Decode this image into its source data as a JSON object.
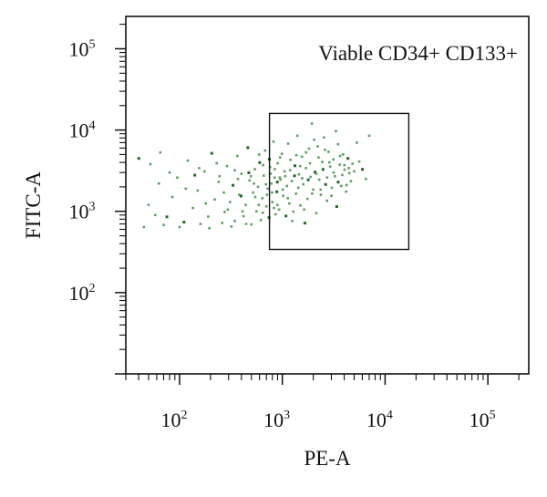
{
  "chart_data": {
    "type": "scatter",
    "title": "",
    "annotation": "Viable CD34+ CD133+",
    "xlabel": "PE-A",
    "ylabel": "FITC-A",
    "x_scale": "log",
    "y_scale": "log",
    "xlim": [
      30,
      250000
    ],
    "ylim": [
      10,
      250000
    ],
    "x_ticks": [
      {
        "base": "10",
        "exp": "2",
        "value": 100
      },
      {
        "base": "10",
        "exp": "3",
        "value": 1000
      },
      {
        "base": "10",
        "exp": "4",
        "value": 10000
      },
      {
        "base": "10",
        "exp": "5",
        "value": 100000
      }
    ],
    "y_ticks": [
      {
        "base": "10",
        "exp": "2",
        "value": 100
      },
      {
        "base": "10",
        "exp": "3",
        "value": 1000
      },
      {
        "base": "10",
        "exp": "4",
        "value": 10000
      },
      {
        "base": "10",
        "exp": "5",
        "value": 100000
      }
    ],
    "gate": {
      "x": [
        750,
        17000
      ],
      "y": [
        340,
        16000
      ]
    },
    "point_color": "#2e7d32",
    "point_color_dense": "#1b5e20",
    "grid": false,
    "points": [
      [
        40,
        4500
      ],
      [
        52,
        3800
      ],
      [
        63,
        2200
      ],
      [
        58,
        900
      ],
      [
        70,
        680
      ],
      [
        85,
        1500
      ],
      [
        95,
        2600
      ],
      [
        110,
        740
      ],
      [
        120,
        4200
      ],
      [
        135,
        1100
      ],
      [
        150,
        1800
      ],
      [
        160,
        700
      ],
      [
        175,
        3100
      ],
      [
        190,
        860
      ],
      [
        205,
        5200
      ],
      [
        220,
        1400
      ],
      [
        240,
        2300
      ],
      [
        260,
        720
      ],
      [
        275,
        980
      ],
      [
        290,
        3600
      ],
      [
        310,
        1300
      ],
      [
        330,
        2100
      ],
      [
        345,
        760
      ],
      [
        365,
        4800
      ],
      [
        380,
        1600
      ],
      [
        400,
        2900
      ],
      [
        420,
        870
      ],
      [
        440,
        1200
      ],
      [
        460,
        6100
      ],
      [
        480,
        2400
      ],
      [
        500,
        690
      ],
      [
        520,
        1700
      ],
      [
        540,
        3300
      ],
      [
        560,
        1000
      ],
      [
        580,
        2000
      ],
      [
        600,
        4000
      ],
      [
        620,
        780
      ],
      [
        640,
        1450
      ],
      [
        660,
        2750
      ],
      [
        680,
        5600
      ],
      [
        700,
        1150
      ],
      [
        720,
        1900
      ],
      [
        740,
        840
      ],
      [
        760,
        3500
      ],
      [
        780,
        2200
      ],
      [
        800,
        1300
      ],
      [
        820,
        7200
      ],
      [
        840,
        2600
      ],
      [
        860,
        920
      ],
      [
        880,
        1750
      ],
      [
        900,
        3900
      ],
      [
        930,
        1050
      ],
      [
        960,
        2450
      ],
      [
        990,
        5100
      ],
      [
        1020,
        1550
      ],
      [
        1050,
        3100
      ],
      [
        1080,
        880
      ],
      [
        1110,
        2050
      ],
      [
        1140,
        6800
      ],
      [
        1170,
        1250
      ],
      [
        1200,
        4300
      ],
      [
        1240,
        2350
      ],
      [
        1280,
        990
      ],
      [
        1320,
        3650
      ],
      [
        1360,
        1650
      ],
      [
        1400,
        8500
      ],
      [
        1450,
        2850
      ],
      [
        1500,
        1180
      ],
      [
        1550,
        4700
      ],
      [
        1600,
        2150
      ],
      [
        1650,
        720
      ],
      [
        1700,
        3400
      ],
      [
        1760,
        1420
      ],
      [
        1820,
        5900
      ],
      [
        1880,
        2650
      ],
      [
        1940,
        12000
      ],
      [
        2000,
        1850
      ],
      [
        2070,
        3050
      ],
      [
        2140,
        950
      ],
      [
        2210,
        6300
      ],
      [
        2290,
        2450
      ],
      [
        2370,
        1600
      ],
      [
        2450,
        4050
      ],
      [
        2540,
        8100
      ],
      [
        2630,
        2150
      ],
      [
        2720,
        1350
      ],
      [
        2820,
        5400
      ],
      [
        2920,
        3550
      ],
      [
        3030,
        1950
      ],
      [
        3140,
        4350
      ],
      [
        3250,
        2700
      ],
      [
        3370,
        1150
      ],
      [
        3490,
        6700
      ],
      [
        3620,
        3750
      ],
      [
        3750,
        2050
      ],
      [
        3890,
        5000
      ],
      [
        4030,
        3250
      ],
      [
        4180,
        1750
      ],
      [
        4330,
        4500
      ],
      [
        4490,
        2950
      ],
      [
        4650,
        2350
      ],
      [
        4820,
        3850
      ],
      [
        5000,
        3100
      ],
      [
        5300,
        7000
      ],
      [
        5600,
        4100
      ],
      [
        6000,
        3300
      ],
      [
        6500,
        2500
      ],
      [
        7000,
        8500
      ],
      [
        50,
        1200
      ],
      [
        65,
        5300
      ],
      [
        80,
        3000
      ],
      [
        100,
        640
      ],
      [
        140,
        2800
      ],
      [
        180,
        1250
      ],
      [
        230,
        3900
      ],
      [
        270,
        1700
      ],
      [
        320,
        650
      ],
      [
        370,
        2500
      ],
      [
        410,
        1000
      ],
      [
        470,
        3000
      ],
      [
        530,
        2200
      ],
      [
        590,
        1200
      ],
      [
        650,
        3700
      ],
      [
        710,
        1600
      ],
      [
        770,
        2900
      ],
      [
        830,
        1100
      ],
      [
        890,
        2300
      ],
      [
        950,
        4600
      ],
      [
        1010,
        1850
      ],
      [
        1070,
        2700
      ],
      [
        1130,
        1450
      ],
      [
        1190,
        3200
      ],
      [
        1250,
        760
      ],
      [
        1310,
        2750
      ],
      [
        1370,
        4900
      ],
      [
        1430,
        1950
      ],
      [
        1490,
        3600
      ],
      [
        1560,
        2550
      ],
      [
        1630,
        1050
      ],
      [
        1700,
        5300
      ],
      [
        1780,
        2450
      ],
      [
        1860,
        3900
      ],
      [
        1950,
        1650
      ],
      [
        2040,
        7600
      ],
      [
        2140,
        2900
      ],
      [
        2250,
        4600
      ],
      [
        2360,
        1850
      ],
      [
        2480,
        3300
      ],
      [
        2600,
        5700
      ],
      [
        2730,
        2600
      ],
      [
        2870,
        4000
      ],
      [
        3010,
        1550
      ],
      [
        3160,
        3000
      ],
      [
        3320,
        9700
      ],
      [
        3480,
        2300
      ],
      [
        3650,
        4800
      ],
      [
        3830,
        2800
      ],
      [
        4020,
        3700
      ],
      [
        4220,
        2100
      ],
      [
        4430,
        3400
      ],
      [
        45,
        640
      ],
      [
        75,
        860
      ],
      [
        115,
        1900
      ],
      [
        155,
        3400
      ],
      [
        195,
        620
      ],
      [
        245,
        2700
      ],
      [
        295,
        1050
      ],
      [
        345,
        3200
      ],
      [
        395,
        1550
      ],
      [
        445,
        700
      ],
      [
        495,
        2700
      ],
      [
        545,
        1500
      ],
      [
        595,
        5000
      ],
      [
        645,
        960
      ],
      [
        695,
        2150
      ],
      [
        745,
        4400
      ],
      [
        795,
        1700
      ],
      [
        845,
        3300
      ],
      [
        895,
        1200
      ],
      [
        945,
        2600
      ]
    ]
  }
}
